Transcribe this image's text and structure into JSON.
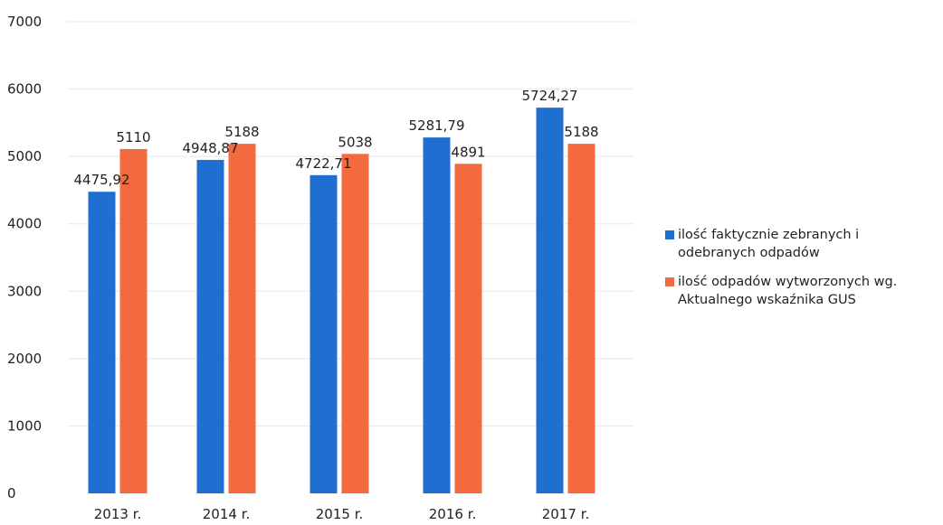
{
  "chart_data": {
    "type": "bar",
    "categories": [
      "2013 r.",
      "2014 r.",
      "2015 r.",
      "2016 r.",
      "2017 r."
    ],
    "series": [
      {
        "name": "ilość faktycznie zebranych i odebranych odpadów",
        "values": [
          4475.92,
          4948.87,
          4722.71,
          5281.79,
          5724.27
        ],
        "labels": [
          "4475,92",
          "4948,87",
          "4722,71",
          "5281,79",
          "5724,27"
        ],
        "color": "#1f6fd1"
      },
      {
        "name": "ilość odpadów wytworzonych wg. Aktualnego wskaźnika GUS",
        "values": [
          5110,
          5188,
          5038,
          4891,
          5188
        ],
        "labels": [
          "5110",
          "5188",
          "5038",
          "4891",
          "5188"
        ],
        "color": "#f26a3d"
      }
    ],
    "ylim": [
      0,
      7000
    ],
    "yticks": [
      0,
      1000,
      2000,
      3000,
      4000,
      5000,
      6000,
      7000
    ],
    "grid": true,
    "legend_position": "right",
    "xlabel": "",
    "ylabel": "",
    "title": ""
  }
}
